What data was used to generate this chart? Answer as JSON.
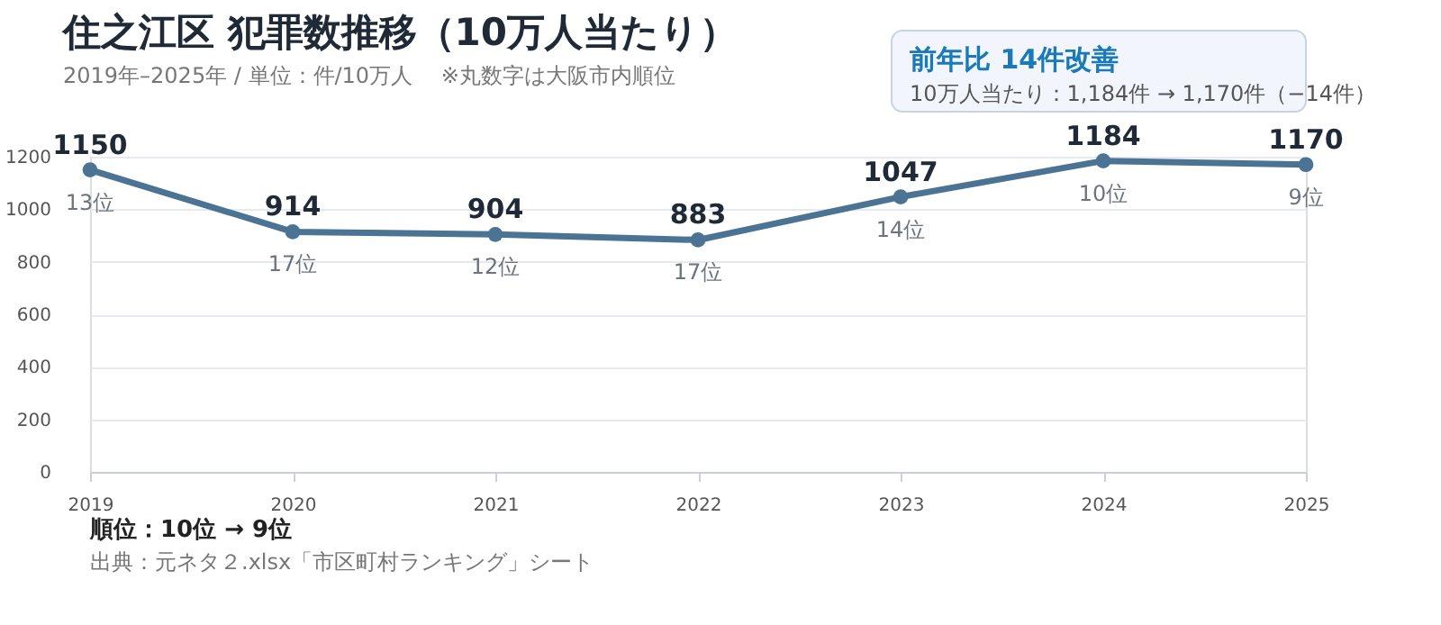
{
  "chart_data": {
    "type": "line",
    "title": "住之江区  犯罪数推移（10万人当たり）",
    "subtitle": "2019年–2025年 / 単位：件/10万人　 ※丸数字は大阪市内順位",
    "categories": [
      "2019",
      "2020",
      "2021",
      "2022",
      "2023",
      "2024",
      "2025"
    ],
    "series": [
      {
        "color": "#4a7394",
        "values": [
          1150,
          914,
          904,
          883,
          1047,
          1184,
          1170
        ]
      }
    ],
    "ylim": [
      0,
      1200
    ],
    "yticks": [
      0,
      200,
      400,
      600,
      800,
      1000,
      1200
    ],
    "grid": "y",
    "marker": "circle",
    "line_style": "solid",
    "data_labels": true,
    "annotations": [
      "前年比  14件改善",
      "10万人当たり：1,184件 → 1,170件（−14件）",
      "順位：10位 → 9位",
      "出典：元ネタ２.xlsx「市区町村ランキング」シート",
      {
        "text": "13位",
        "x": "2019",
        "y": 1150
      },
      {
        "text": "17位",
        "x": "2020",
        "y": 914
      },
      {
        "text": "12位",
        "x": "2021",
        "y": 904
      },
      {
        "text": "17位",
        "x": "2022",
        "y": 883
      },
      {
        "text": "14位",
        "x": "2023",
        "y": 1047
      },
      {
        "text": "10位",
        "x": "2024",
        "y": 1184
      },
      {
        "text": "9位",
        "x": "2025",
        "y": 1170
      }
    ]
  }
}
